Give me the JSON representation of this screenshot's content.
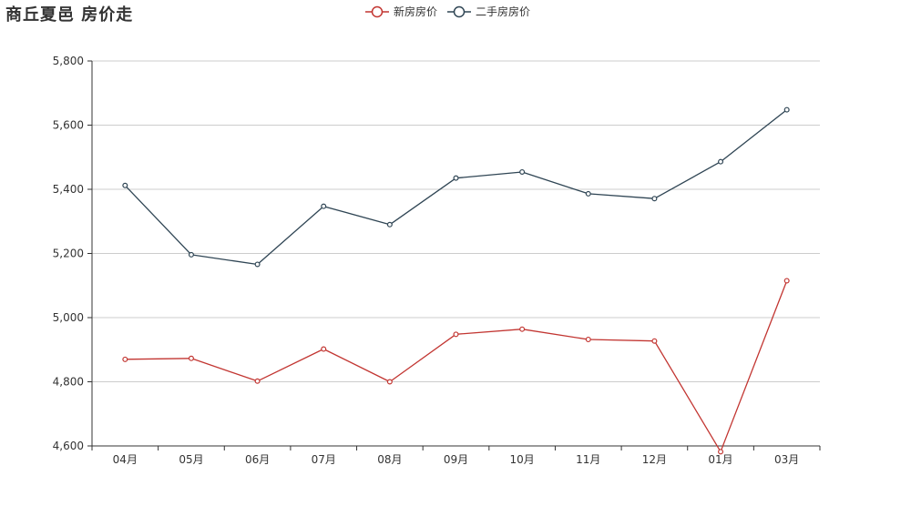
{
  "chart_data": {
    "type": "line",
    "title": "商丘夏邑  房价走",
    "categories": [
      "04月",
      "05月",
      "06月",
      "07月",
      "08月",
      "09月",
      "10月",
      "11月",
      "12月",
      "01月",
      "03月"
    ],
    "series": [
      {
        "name": "新房房价",
        "color": "#c23531",
        "values": [
          4870,
          4873,
          4802,
          4902,
          4800,
          4948,
          4964,
          4932,
          4927,
          4582,
          5115
        ]
      },
      {
        "name": "二手房房价",
        "color": "#2f4554",
        "values": [
          5412,
          5196,
          5166,
          5347,
          5290,
          5435,
          5454,
          5386,
          5371,
          5486,
          5648
        ]
      }
    ],
    "ylim": [
      4600,
      5800
    ],
    "yticks": [
      4600,
      4800,
      5000,
      5200,
      5400,
      5600,
      5800
    ],
    "ytick_labels": [
      "4,600",
      "4,800",
      "5,000",
      "5,200",
      "5,400",
      "5,600",
      "5,800"
    ],
    "grid": "horizontal",
    "legend_position": "top-center"
  }
}
